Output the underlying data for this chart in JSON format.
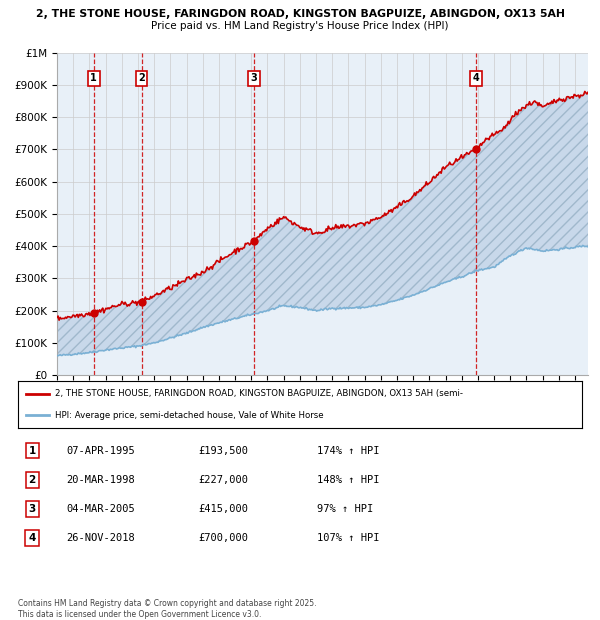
{
  "title_line1": "2, THE STONE HOUSE, FARINGDON ROAD, KINGSTON BAGPUIZE, ABINGDON, OX13 5AH",
  "title_line2": "Price paid vs. HM Land Registry's House Price Index (HPI)",
  "ylim": [
    0,
    1000000
  ],
  "ytick_labels": [
    "£0",
    "£100K",
    "£200K",
    "£300K",
    "£400K",
    "£500K",
    "£600K",
    "£700K",
    "£800K",
    "£900K",
    "£1M"
  ],
  "ytick_values": [
    0,
    100000,
    200000,
    300000,
    400000,
    500000,
    600000,
    700000,
    800000,
    900000,
    1000000
  ],
  "xlim_start": 1993.0,
  "xlim_end": 2025.8,
  "sale_dates": [
    1995.27,
    1998.22,
    2005.17,
    2018.9
  ],
  "sale_prices": [
    193500,
    227000,
    415000,
    700000
  ],
  "sale_labels": [
    "1",
    "2",
    "3",
    "4"
  ],
  "red_line_color": "#cc0000",
  "blue_line_color": "#7ab0d4",
  "grid_color": "#cccccc",
  "background_plot": "#e8f0f8",
  "legend_line1": "2, THE STONE HOUSE, FARINGDON ROAD, KINGSTON BAGPUIZE, ABINGDON, OX13 5AH (semi-",
  "legend_line2": "HPI: Average price, semi-detached house, Vale of White Horse",
  "table_entries": [
    {
      "label": "1",
      "date": "07-APR-1995",
      "price": "£193,500",
      "pct": "174% ↑ HPI"
    },
    {
      "label": "2",
      "date": "20-MAR-1998",
      "price": "£227,000",
      "pct": "148% ↑ HPI"
    },
    {
      "label": "3",
      "date": "04-MAR-2005",
      "price": "£415,000",
      "pct": "97% ↑ HPI"
    },
    {
      "label": "4",
      "date": "26-NOV-2018",
      "price": "£700,000",
      "pct": "107% ↑ HPI"
    }
  ],
  "footnote": "Contains HM Land Registry data © Crown copyright and database right 2025.\nThis data is licensed under the Open Government Licence v3.0."
}
